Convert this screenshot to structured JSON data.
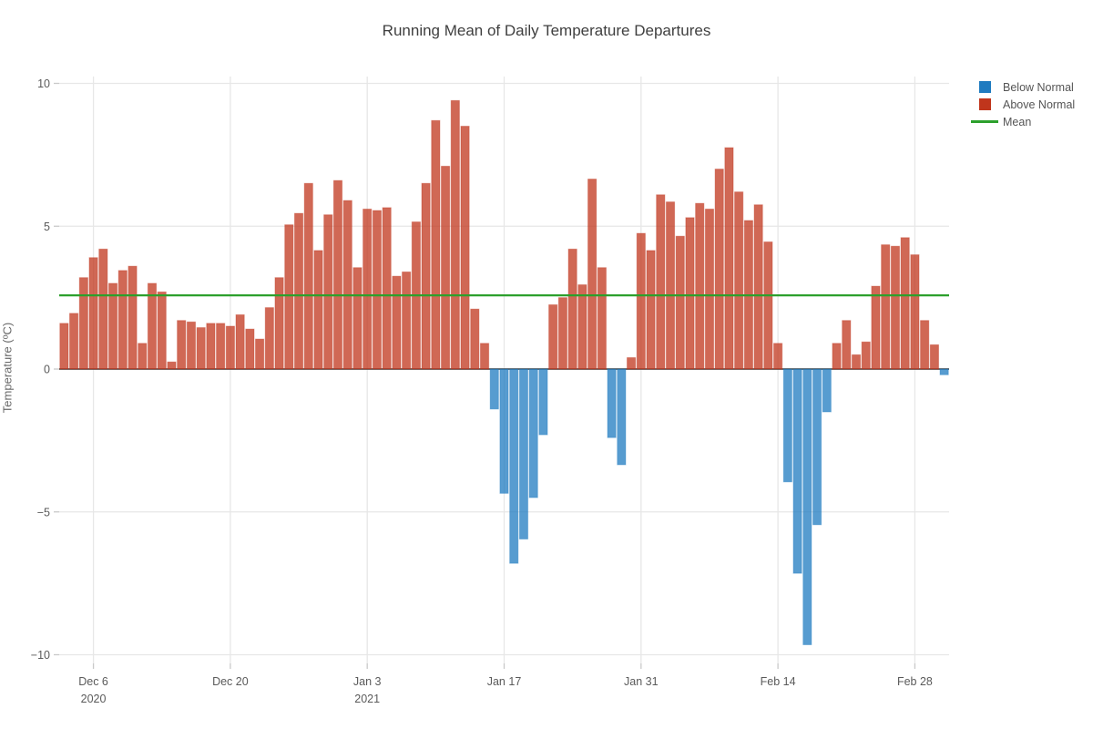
{
  "title": "Running Mean of Daily Temperature Departures",
  "legend": {
    "position": "top-right",
    "below_label": "Below Normal",
    "above_label": "Above Normal",
    "mean_label": "Mean"
  },
  "y_axis": {
    "label": "Temperature (ºC)",
    "ticks": [
      10,
      5,
      0,
      -5,
      -10
    ]
  },
  "x_axis": {
    "ticks": [
      {
        "date": "2020-12-06",
        "label": "Dec 6",
        "year": "2020"
      },
      {
        "date": "2020-12-20",
        "label": "Dec 20",
        "year": ""
      },
      {
        "date": "2021-01-03",
        "label": "Jan 3",
        "year": "2021"
      },
      {
        "date": "2021-01-17",
        "label": "Jan 17",
        "year": ""
      },
      {
        "date": "2021-01-31",
        "label": "Jan 31",
        "year": ""
      },
      {
        "date": "2021-02-14",
        "label": "Feb 14",
        "year": ""
      },
      {
        "date": "2021-02-28",
        "label": "Feb 28",
        "year": ""
      }
    ]
  },
  "colors": {
    "below": "#1f7bc0",
    "above": "#c0351c",
    "mean": "#2ca02c",
    "grid": "#e7e7e7",
    "zeroline": "#545454",
    "tick_text": "#5a5a5a",
    "title_text": "#3f3f3f",
    "bar_fill_opacity": 0.75,
    "bar_edge_opacity": 0.35
  },
  "chart_data": {
    "type": "bar",
    "title": "Running Mean of Daily Temperature Departures",
    "xlabel": "",
    "ylabel": "Temperature (ºC)",
    "ylim": [
      -10.3,
      10.3
    ],
    "grid": true,
    "legend_position": "top-right",
    "series_rule": "value >= 0 -> Above Normal (red); value < 0 -> Below Normal (blue)",
    "mean_value": 2.58,
    "x": [
      "2020-12-03",
      "2020-12-04",
      "2020-12-05",
      "2020-12-06",
      "2020-12-07",
      "2020-12-08",
      "2020-12-09",
      "2020-12-10",
      "2020-12-11",
      "2020-12-12",
      "2020-12-13",
      "2020-12-14",
      "2020-12-15",
      "2020-12-16",
      "2020-12-17",
      "2020-12-18",
      "2020-12-19",
      "2020-12-20",
      "2020-12-21",
      "2020-12-22",
      "2020-12-23",
      "2020-12-24",
      "2020-12-25",
      "2020-12-26",
      "2020-12-27",
      "2020-12-28",
      "2020-12-29",
      "2020-12-30",
      "2020-12-31",
      "2021-01-01",
      "2021-01-02",
      "2021-01-03",
      "2021-01-04",
      "2021-01-05",
      "2021-01-06",
      "2021-01-07",
      "2021-01-08",
      "2021-01-09",
      "2021-01-10",
      "2021-01-11",
      "2021-01-12",
      "2021-01-13",
      "2021-01-14",
      "2021-01-15",
      "2021-01-16",
      "2021-01-17",
      "2021-01-18",
      "2021-01-19",
      "2021-01-20",
      "2021-01-21",
      "2021-01-22",
      "2021-01-23",
      "2021-01-24",
      "2021-01-25",
      "2021-01-26",
      "2021-01-27",
      "2021-01-28",
      "2021-01-29",
      "2021-01-30",
      "2021-01-31",
      "2021-02-01",
      "2021-02-02",
      "2021-02-03",
      "2021-02-04",
      "2021-02-05",
      "2021-02-06",
      "2021-02-07",
      "2021-02-08",
      "2021-02-09",
      "2021-02-10",
      "2021-02-11",
      "2021-02-12",
      "2021-02-13",
      "2021-02-14",
      "2021-02-15",
      "2021-02-16",
      "2021-02-17",
      "2021-02-18",
      "2021-02-19",
      "2021-02-20",
      "2021-02-21",
      "2021-02-22",
      "2021-02-23",
      "2021-02-24",
      "2021-02-25",
      "2021-02-26",
      "2021-02-27",
      "2021-02-28",
      "2021-03-01",
      "2021-03-02",
      "2021-03-03"
    ],
    "values": [
      1.6,
      1.95,
      3.2,
      3.9,
      4.2,
      3.0,
      3.45,
      3.6,
      0.9,
      3.0,
      2.7,
      0.25,
      1.7,
      1.65,
      1.45,
      1.6,
      1.6,
      1.5,
      1.9,
      1.4,
      1.05,
      2.15,
      3.2,
      5.05,
      5.45,
      6.5,
      4.15,
      5.4,
      6.6,
      5.9,
      3.55,
      5.6,
      5.55,
      5.65,
      3.25,
      3.4,
      5.15,
      6.5,
      8.7,
      7.1,
      9.4,
      8.5,
      2.1,
      0.9,
      -1.4,
      -4.35,
      -6.8,
      -5.95,
      -4.5,
      -2.3,
      2.25,
      2.5,
      4.2,
      2.95,
      6.65,
      3.55,
      -2.4,
      -3.35,
      0.4,
      4.75,
      4.15,
      6.1,
      5.85,
      4.65,
      5.3,
      5.8,
      5.6,
      7.0,
      7.75,
      6.2,
      5.2,
      5.75,
      4.45,
      0.9,
      -3.95,
      -7.15,
      -9.65,
      -5.45,
      -1.5,
      0.9,
      1.7,
      0.5,
      0.95,
      2.9,
      4.35,
      4.3,
      4.6,
      4.0,
      1.7,
      0.85,
      -0.2
    ]
  }
}
